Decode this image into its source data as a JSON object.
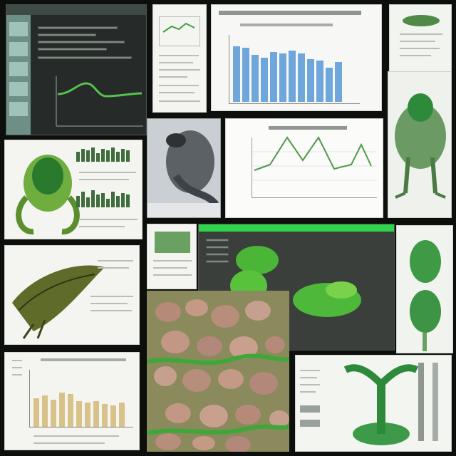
{
  "collage": {
    "tiles": [
      {
        "id": "monitor-chart",
        "kind": "dark screen with green line plot"
      },
      {
        "id": "small-doc-chart",
        "kind": "document with small line chart"
      },
      {
        "id": "blue-bar-chart",
        "kind": "bar chart"
      },
      {
        "id": "creature-sketch-top",
        "kind": "paper with green creature"
      },
      {
        "id": "green-creature-bars",
        "kind": "creature with bar histograms"
      },
      {
        "id": "grey-sculpture",
        "kind": "grey sculpture photo"
      },
      {
        "id": "green-line-chart",
        "kind": "line chart"
      },
      {
        "id": "green-beast",
        "kind": "green beast illustration"
      },
      {
        "id": "leaf-creature",
        "kind": "reptile scale illustration"
      },
      {
        "id": "monitor-blobs",
        "kind": "dark screen with green blobs"
      },
      {
        "id": "green-pods",
        "kind": "green pods illustration"
      },
      {
        "id": "doc-small-green",
        "kind": "small document with green image"
      },
      {
        "id": "pebbles",
        "kind": "pebble texture"
      },
      {
        "id": "gold-bar-chart",
        "kind": "bar chart"
      },
      {
        "id": "green-mantis",
        "kind": "green creature with poles"
      }
    ],
    "colors": {
      "background": "#0d0f0c",
      "accent_green": "#2fd44a",
      "bar_blue": "#6fa6dc",
      "bar_gold": "#d9c28a",
      "line_green": "#4f9a4a"
    }
  }
}
